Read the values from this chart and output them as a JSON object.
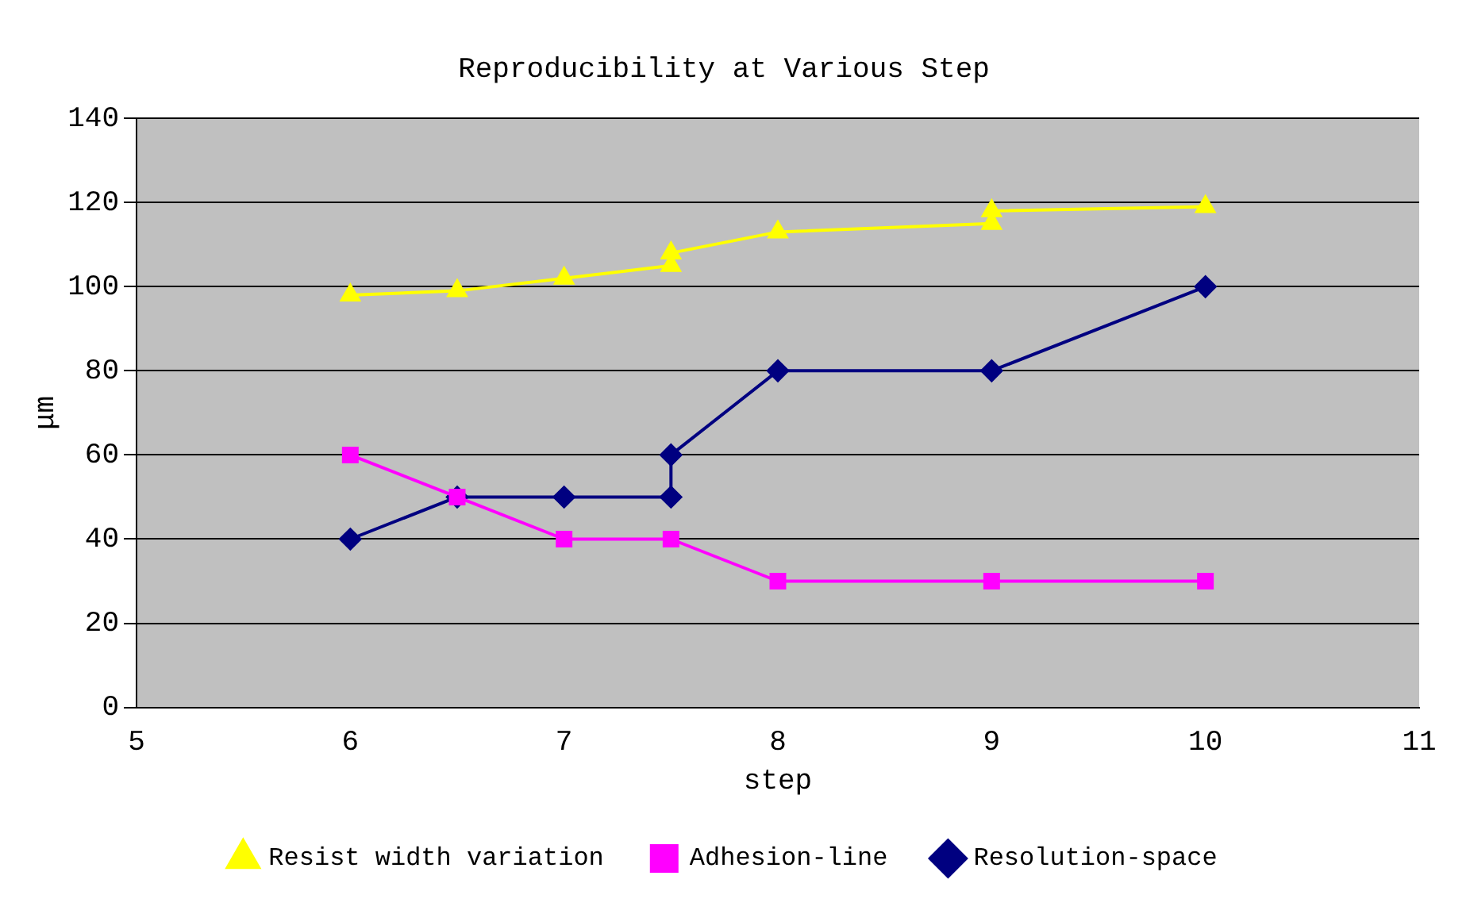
{
  "chart_data": {
    "type": "line",
    "title": "Reproducibility at Various Step",
    "xlabel": "step",
    "ylabel": "μm",
    "xlim": [
      5,
      11
    ],
    "xticks": [
      5,
      6,
      7,
      8,
      9,
      10,
      11
    ],
    "ylim": [
      0,
      140
    ],
    "yticks": [
      0,
      20,
      40,
      60,
      80,
      100,
      120,
      140
    ],
    "grid": "y",
    "legend": "bottom",
    "line_style": "solid",
    "series": [
      {
        "name": "Resolution-space",
        "color": "#000080",
        "marker": "diamond",
        "x": [
          6,
          6.5,
          7,
          7.5,
          7.5,
          8,
          9,
          10
        ],
        "values": [
          40,
          50,
          50,
          50,
          60,
          80,
          80,
          100
        ]
      },
      {
        "name": "Adhesion-line",
        "color": "#ff00ff",
        "marker": "square",
        "x": [
          6,
          6.5,
          7,
          7.5,
          8,
          9,
          10
        ],
        "values": [
          60,
          50,
          40,
          40,
          30,
          30,
          30
        ]
      },
      {
        "name": "Resist width variation",
        "color": "#ffff00",
        "marker": "triangle",
        "x": [
          6,
          6.5,
          7,
          7.5,
          7.5,
          8,
          9,
          9,
          10
        ],
        "values": [
          98,
          99,
          102,
          105,
          108,
          113,
          115,
          118,
          119
        ]
      }
    ]
  }
}
